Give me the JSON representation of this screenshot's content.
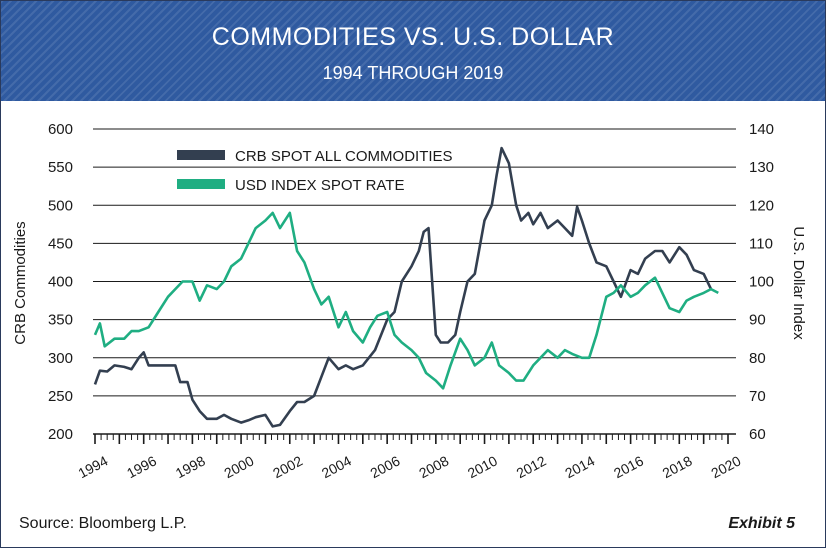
{
  "header": {
    "title": "COMMODITIES VS. U.S. DOLLAR",
    "subtitle": "1994 THROUGH 2019"
  },
  "footer": {
    "source": "Source: Bloomberg L.P.",
    "exhibit": "Exhibit 5"
  },
  "colors": {
    "banner": "#2f5aa0",
    "crb": "#333f50",
    "usd": "#1fae82",
    "grid": "#1a1a1a"
  },
  "chart_data": {
    "type": "line",
    "title": "COMMODITIES VS. U.S. DOLLAR",
    "subtitle": "1994 THROUGH 2019",
    "ylabel_left": "CRB Commodities",
    "ylabel_right": "U.S. Dollar Index",
    "ylim_left": [
      200,
      600
    ],
    "ylim_right": [
      60,
      140
    ],
    "xlim": [
      1994,
      2020
    ],
    "yticks_left": [
      "200",
      "250",
      "300",
      "350",
      "400",
      "450",
      "500",
      "550",
      "600"
    ],
    "yticks_right": [
      "60",
      "70",
      "80",
      "90",
      "100",
      "110",
      "120",
      "130",
      "140"
    ],
    "xticks": [
      "1994",
      "1996",
      "1998",
      "2000",
      "2002",
      "2004",
      "2006",
      "2008",
      "2010",
      "2012",
      "2014",
      "2016",
      "2018",
      "2020"
    ],
    "grid": "horizontal",
    "legend_position": "top-left",
    "series": [
      {
        "name": "CRB SPOT ALL COMMODITIES",
        "axis": "left",
        "color": "#333f50",
        "points": [
          [
            1994.0,
            265
          ],
          [
            1994.2,
            283
          ],
          [
            1994.5,
            282
          ],
          [
            1994.8,
            290
          ],
          [
            1995.2,
            288
          ],
          [
            1995.5,
            285
          ],
          [
            1995.8,
            300
          ],
          [
            1996.0,
            307
          ],
          [
            1996.2,
            290
          ],
          [
            1996.5,
            290
          ],
          [
            1997.0,
            290
          ],
          [
            1997.3,
            290
          ],
          [
            1997.5,
            268
          ],
          [
            1997.8,
            268
          ],
          [
            1998.0,
            245
          ],
          [
            1998.3,
            230
          ],
          [
            1998.6,
            220
          ],
          [
            1999.0,
            220
          ],
          [
            1999.3,
            225
          ],
          [
            1999.6,
            220
          ],
          [
            2000.0,
            215
          ],
          [
            2000.3,
            218
          ],
          [
            2000.6,
            222
          ],
          [
            2001.0,
            225
          ],
          [
            2001.3,
            210
          ],
          [
            2001.6,
            212
          ],
          [
            2002.0,
            230
          ],
          [
            2002.3,
            242
          ],
          [
            2002.6,
            242
          ],
          [
            2003.0,
            250
          ],
          [
            2003.3,
            275
          ],
          [
            2003.6,
            300
          ],
          [
            2004.0,
            285
          ],
          [
            2004.3,
            290
          ],
          [
            2004.6,
            285
          ],
          [
            2005.0,
            290
          ],
          [
            2005.5,
            310
          ],
          [
            2006.0,
            350
          ],
          [
            2006.3,
            360
          ],
          [
            2006.6,
            400
          ],
          [
            2007.0,
            420
          ],
          [
            2007.3,
            440
          ],
          [
            2007.5,
            465
          ],
          [
            2007.7,
            470
          ],
          [
            2008.0,
            330
          ],
          [
            2008.2,
            320
          ],
          [
            2008.5,
            320
          ],
          [
            2008.8,
            330
          ],
          [
            2009.0,
            360
          ],
          [
            2009.3,
            400
          ],
          [
            2009.6,
            410
          ],
          [
            2010.0,
            480
          ],
          [
            2010.3,
            500
          ],
          [
            2010.5,
            540
          ],
          [
            2010.7,
            575
          ],
          [
            2011.0,
            555
          ],
          [
            2011.3,
            500
          ],
          [
            2011.5,
            480
          ],
          [
            2011.8,
            490
          ],
          [
            2012.0,
            475
          ],
          [
            2012.3,
            490
          ],
          [
            2012.6,
            470
          ],
          [
            2013.0,
            480
          ],
          [
            2013.3,
            470
          ],
          [
            2013.6,
            460
          ],
          [
            2013.8,
            498
          ],
          [
            2014.0,
            480
          ],
          [
            2014.3,
            450
          ],
          [
            2014.6,
            425
          ],
          [
            2015.0,
            420
          ],
          [
            2015.3,
            400
          ],
          [
            2015.6,
            380
          ],
          [
            2016.0,
            415
          ],
          [
            2016.3,
            410
          ],
          [
            2016.6,
            430
          ],
          [
            2017.0,
            440
          ],
          [
            2017.3,
            440
          ],
          [
            2017.6,
            425
          ],
          [
            2018.0,
            445
          ],
          [
            2018.3,
            435
          ],
          [
            2018.6,
            415
          ],
          [
            2019.0,
            410
          ],
          [
            2019.3,
            390
          ]
        ]
      },
      {
        "name": "USD INDEX SPOT RATE",
        "axis": "right",
        "color": "#1fae82",
        "points": [
          [
            1994.0,
            86
          ],
          [
            1994.2,
            89
          ],
          [
            1994.4,
            83
          ],
          [
            1994.8,
            85
          ],
          [
            1995.2,
            85
          ],
          [
            1995.5,
            87
          ],
          [
            1995.8,
            87
          ],
          [
            1996.2,
            88
          ],
          [
            1996.6,
            92
          ],
          [
            1997.0,
            96
          ],
          [
            1997.3,
            98
          ],
          [
            1997.6,
            100
          ],
          [
            1998.0,
            100
          ],
          [
            1998.3,
            95
          ],
          [
            1998.6,
            99
          ],
          [
            1999.0,
            98
          ],
          [
            1999.3,
            100
          ],
          [
            1999.6,
            104
          ],
          [
            2000.0,
            106
          ],
          [
            2000.3,
            110
          ],
          [
            2000.6,
            114
          ],
          [
            2001.0,
            116
          ],
          [
            2001.3,
            118
          ],
          [
            2001.6,
            114
          ],
          [
            2002.0,
            118
          ],
          [
            2002.3,
            108
          ],
          [
            2002.6,
            105
          ],
          [
            2003.0,
            98
          ],
          [
            2003.3,
            94
          ],
          [
            2003.6,
            96
          ],
          [
            2004.0,
            88
          ],
          [
            2004.3,
            92
          ],
          [
            2004.6,
            87
          ],
          [
            2005.0,
            84
          ],
          [
            2005.3,
            88
          ],
          [
            2005.6,
            91
          ],
          [
            2006.0,
            92
          ],
          [
            2006.3,
            86
          ],
          [
            2006.6,
            84
          ],
          [
            2007.0,
            82
          ],
          [
            2007.3,
            80
          ],
          [
            2007.6,
            76
          ],
          [
            2008.0,
            74
          ],
          [
            2008.3,
            72
          ],
          [
            2008.6,
            78
          ],
          [
            2009.0,
            85
          ],
          [
            2009.3,
            82
          ],
          [
            2009.6,
            78
          ],
          [
            2010.0,
            80
          ],
          [
            2010.3,
            84
          ],
          [
            2010.6,
            78
          ],
          [
            2011.0,
            76
          ],
          [
            2011.3,
            74
          ],
          [
            2011.6,
            74
          ],
          [
            2012.0,
            78
          ],
          [
            2012.3,
            80
          ],
          [
            2012.6,
            82
          ],
          [
            2013.0,
            80
          ],
          [
            2013.3,
            82
          ],
          [
            2013.6,
            81
          ],
          [
            2014.0,
            80
          ],
          [
            2014.3,
            80
          ],
          [
            2014.6,
            86
          ],
          [
            2015.0,
            96
          ],
          [
            2015.3,
            97
          ],
          [
            2015.6,
            99
          ],
          [
            2016.0,
            96
          ],
          [
            2016.3,
            97
          ],
          [
            2016.6,
            99
          ],
          [
            2017.0,
            101
          ],
          [
            2017.3,
            97
          ],
          [
            2017.6,
            93
          ],
          [
            2018.0,
            92
          ],
          [
            2018.3,
            95
          ],
          [
            2018.6,
            96
          ],
          [
            2019.0,
            97
          ],
          [
            2019.3,
            98
          ],
          [
            2019.6,
            97
          ]
        ]
      }
    ]
  }
}
